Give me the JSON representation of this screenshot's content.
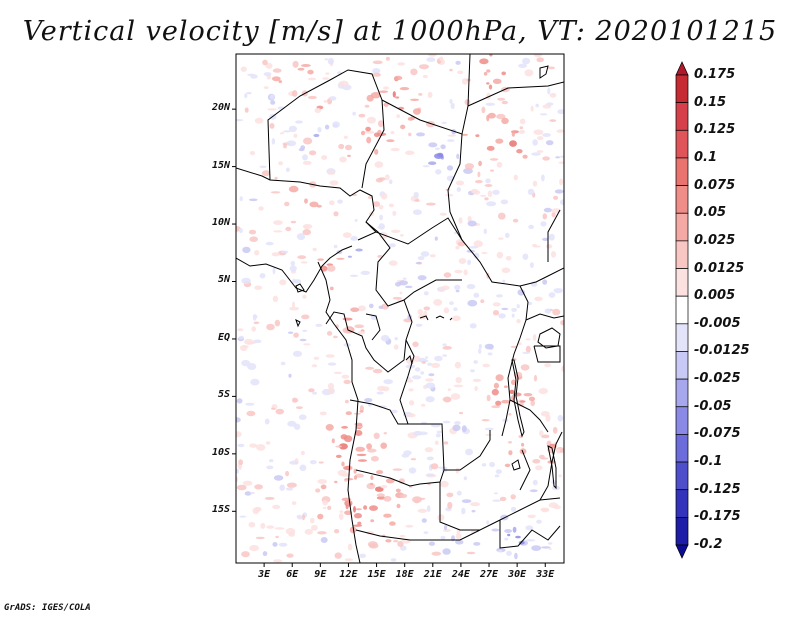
{
  "title": "Vertical velocity [m/s] at 1000hPa, VT: 2020101215",
  "footer": "GrADS: IGES/COLA",
  "map": {
    "lat_labels": [
      "20N",
      "15N",
      "10N",
      "5N",
      "EQ",
      "5S",
      "10S",
      "15S"
    ],
    "lat_values": [
      20,
      15,
      10,
      5,
      0,
      -5,
      -10,
      -15
    ],
    "lon_labels": [
      "3E",
      "6E",
      "9E",
      "12E",
      "15E",
      "18E",
      "21E",
      "24E",
      "27E",
      "30E",
      "33E"
    ],
    "lon_values": [
      3,
      6,
      9,
      12,
      15,
      18,
      21,
      24,
      27,
      30,
      33
    ],
    "lat_range": [
      -19.5,
      24.8
    ],
    "lon_range": [
      0,
      35
    ]
  },
  "colorbar": {
    "labels": [
      "0.175",
      "0.15",
      "0.125",
      "0.1",
      "0.075",
      "0.05",
      "0.025",
      "0.0125",
      "0.005",
      "-0.005",
      "-0.0125",
      "-0.025",
      "-0.05",
      "-0.075",
      "-0.1",
      "-0.125",
      "-0.175",
      "-0.2"
    ],
    "colors": [
      "#b2182b",
      "#c62a32",
      "#d6404a",
      "#e0555a",
      "#e8736f",
      "#ef8d88",
      "#f4a9a5",
      "#f8c6c3",
      "#fbe1df",
      "#ffffff",
      "#e3e3fa",
      "#c9c9f5",
      "#a7a7ee",
      "#8a8ae6",
      "#6c6cdb",
      "#4f4fcc",
      "#3333bb",
      "#1d1da8",
      "#0d0d94"
    ]
  }
}
